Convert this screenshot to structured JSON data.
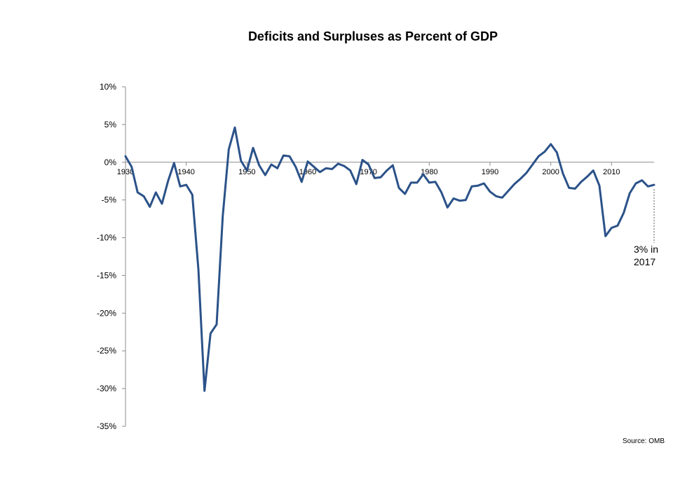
{
  "chart_data": {
    "type": "line",
    "title": "Deficits and Surpluses as Percent of GDP",
    "xlabel": "",
    "ylabel": "",
    "ylim": [
      -35,
      10
    ],
    "xlim": [
      1930,
      2017
    ],
    "y_ticks": [
      10,
      5,
      0,
      -5,
      -10,
      -15,
      -20,
      -25,
      -30,
      -35
    ],
    "y_tick_labels": [
      "10%",
      "5%",
      "0%",
      "-5%",
      "-10%",
      "-15%",
      "-20%",
      "-25%",
      "-30%",
      "-35%"
    ],
    "x_ticks": [
      1930,
      1940,
      1950,
      1960,
      1970,
      1980,
      1990,
      2000,
      2010
    ],
    "x_tick_labels": [
      "1930",
      "1940",
      "1950",
      "1960",
      "1970",
      "1980",
      "1990",
      "2000",
      "2010"
    ],
    "grid": false,
    "color": "#2b5289",
    "x": [
      1930,
      1931,
      1932,
      1933,
      1934,
      1935,
      1936,
      1937,
      1938,
      1939,
      1940,
      1941,
      1942,
      1943,
      1944,
      1945,
      1946,
      1947,
      1948,
      1949,
      1950,
      1951,
      1952,
      1953,
      1954,
      1955,
      1956,
      1957,
      1958,
      1959,
      1960,
      1961,
      1962,
      1963,
      1964,
      1965,
      1966,
      1967,
      1968,
      1969,
      1970,
      1971,
      1972,
      1973,
      1974,
      1975,
      1976,
      1977,
      1978,
      1979,
      1980,
      1981,
      1982,
      1983,
      1984,
      1985,
      1986,
      1987,
      1988,
      1989,
      1990,
      1991,
      1992,
      1993,
      1994,
      1995,
      1996,
      1997,
      1998,
      1999,
      2000,
      2001,
      2002,
      2003,
      2004,
      2005,
      2006,
      2007,
      2008,
      2009,
      2010,
      2011,
      2012,
      2013,
      2014,
      2015,
      2016,
      2017
    ],
    "series": [
      {
        "values": [
          0.8,
          -0.6,
          -4.0,
          -4.5,
          -5.9,
          -4.0,
          -5.5,
          -2.5,
          -0.1,
          -3.2,
          -3.0,
          -4.3,
          -14.2,
          -30.3,
          -22.7,
          -21.5,
          -7.2,
          1.7,
          4.6,
          0.2,
          -1.1,
          1.9,
          -0.4,
          -1.7,
          -0.3,
          -0.8,
          0.9,
          0.8,
          -0.6,
          -2.6,
          0.1,
          -0.6,
          -1.3,
          -0.8,
          -0.9,
          -0.2,
          -0.5,
          -1.1,
          -2.9,
          0.3,
          -0.3,
          -2.1,
          -2.0,
          -1.1,
          -0.4,
          -3.4,
          -4.2,
          -2.7,
          -2.7,
          -1.6,
          -2.7,
          -2.6,
          -4.0,
          -6.0,
          -4.8,
          -5.1,
          -5.0,
          -3.2,
          -3.1,
          -2.8,
          -3.9,
          -4.5,
          -4.7,
          -3.8,
          -2.9,
          -2.2,
          -1.4,
          -0.3,
          0.8,
          1.4,
          2.4,
          1.3,
          -1.5,
          -3.4,
          -3.5,
          -2.6,
          -1.9,
          -1.1,
          -3.1,
          -9.8,
          -8.7,
          -8.4,
          -6.7,
          -4.1,
          -2.8,
          -2.4,
          -3.2,
          -3.0
        ]
      }
    ],
    "annotation": "3% in 2017",
    "annotation_lines": [
      "3% in",
      "2017"
    ],
    "source": "Source: OMB"
  }
}
